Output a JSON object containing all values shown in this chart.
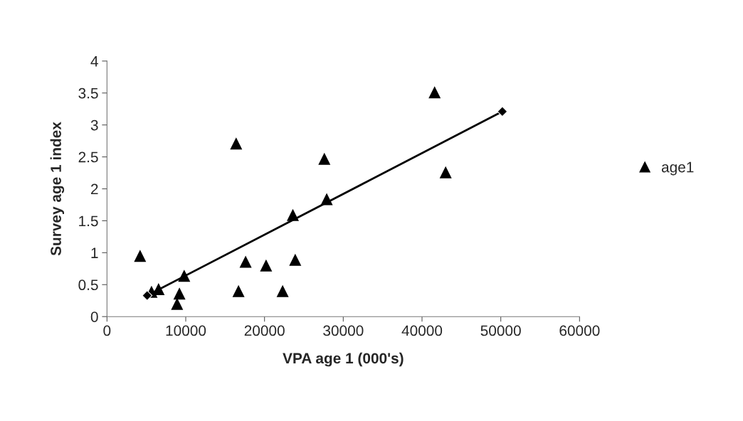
{
  "chart_data": {
    "type": "scatter",
    "xlabel": "VPA age 1 (000's)",
    "ylabel": "Survey age 1 index",
    "series": [
      {
        "name": "age1",
        "marker": "triangle",
        "color": "#000000",
        "x": [
          4200,
          5650,
          6550,
          9800,
          9200,
          8900,
          16400,
          17600,
          16700,
          20200,
          22300,
          23600,
          23900,
          27600,
          27900,
          41600,
          43000
        ],
        "values": [
          0.95,
          0.39,
          0.43,
          0.64,
          0.36,
          0.2,
          2.71,
          0.86,
          0.4,
          0.8,
          0.4,
          1.59,
          0.89,
          2.47,
          1.84,
          3.51,
          2.26
        ]
      },
      {
        "type": "line",
        "marker": "diamond",
        "color": "#000000",
        "x": [
          5100,
          50200
        ],
        "values": [
          0.33,
          3.21
        ]
      }
    ],
    "xlim": [
      0,
      60000
    ],
    "xticks": [
      0,
      10000,
      20000,
      30000,
      40000,
      50000,
      60000
    ],
    "ylim": [
      0,
      4
    ],
    "yticks": [
      0,
      0.5,
      1,
      1.5,
      2,
      2.5,
      3,
      3.5,
      4
    ],
    "grid": false,
    "legend": "right"
  }
}
